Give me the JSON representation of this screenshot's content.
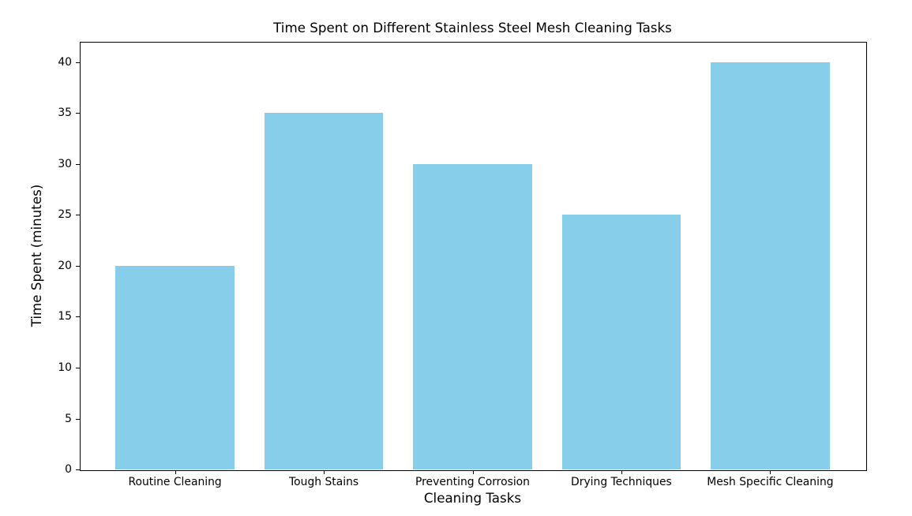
{
  "figure": {
    "background": "#ffffff",
    "spine_color": "#000000",
    "text_color": "#000000"
  },
  "chart_data": {
    "type": "bar",
    "title": "Time Spent on Different Stainless Steel Mesh Cleaning Tasks",
    "xlabel": "Cleaning Tasks",
    "ylabel": "Time Spent (minutes)",
    "categories": [
      "Routine Cleaning",
      "Tough Stains",
      "Preventing Corrosion",
      "Drying Techniques",
      "Mesh Specific Cleaning"
    ],
    "values": [
      20,
      35,
      30,
      25,
      40
    ],
    "bar_color": "#87CEEB",
    "ylim": [
      0,
      42
    ],
    "yticks": [
      0,
      5,
      10,
      15,
      20,
      25,
      30,
      35,
      40
    ],
    "xlim": [
      -0.64,
      4.64
    ],
    "bar_width": 0.8,
    "grid": false,
    "legend": "none"
  }
}
